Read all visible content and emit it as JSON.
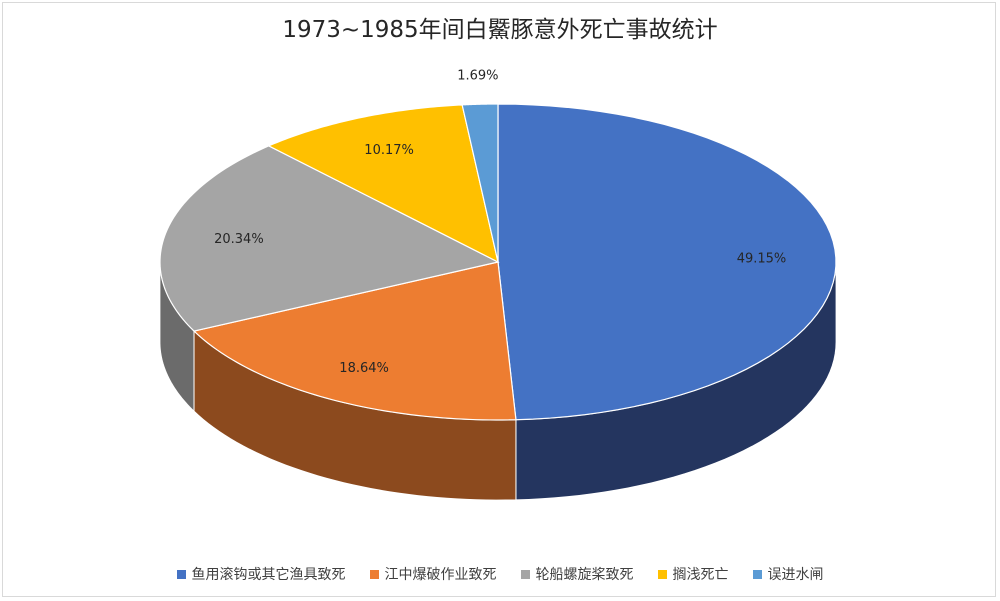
{
  "chart_data": {
    "type": "pie",
    "title": "1973~1985年间白鱀豚意外死亡事故统计",
    "slices": [
      {
        "name": "鱼用滚钩或其它渔具致死",
        "value": 49.15,
        "label": "49.15%",
        "color": "#4472C4",
        "side_color": "#24355F"
      },
      {
        "name": "江中爆破作业致死",
        "value": 18.64,
        "label": "18.64%",
        "color": "#ED7D31",
        "side_color": "#8C4A1E"
      },
      {
        "name": "轮船螺旋桨致死",
        "value": 20.34,
        "label": "20.34%",
        "color": "#A5A5A5",
        "side_color": "#6B6B6B"
      },
      {
        "name": "搁浅死亡",
        "value": 10.17,
        "label": "10.17%",
        "color": "#FFC000",
        "side_color": "#9C7600"
      },
      {
        "name": "误进水闸",
        "value": 1.69,
        "label": "1.69%",
        "color": "#5B9BD5",
        "side_color": "#36607F"
      }
    ],
    "legend_position": "bottom",
    "style": "3d-pie"
  }
}
